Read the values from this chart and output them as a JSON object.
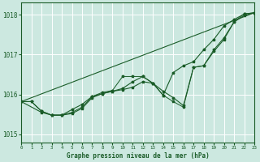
{
  "title": "Graphe pression niveau de la mer (hPa)",
  "bg_color": "#cce8e0",
  "grid_color": "#ffffff",
  "line_color": "#1a5c28",
  "x_min": 0,
  "x_max": 23,
  "y_min": 1014.8,
  "y_max": 1018.3,
  "yticks": [
    1015,
    1016,
    1017,
    1018
  ],
  "xticks": [
    0,
    1,
    2,
    3,
    4,
    5,
    6,
    7,
    8,
    9,
    10,
    11,
    12,
    13,
    14,
    15,
    16,
    17,
    18,
    19,
    20,
    21,
    22,
    23
  ],
  "series": [
    {
      "x": [
        0,
        1,
        2,
        3,
        4,
        5,
        6,
        7,
        8,
        9,
        10,
        11,
        12,
        13,
        14,
        15,
        16,
        17,
        18,
        19,
        20,
        21,
        22,
        23
      ],
      "y": [
        1015.82,
        1015.82,
        1015.58,
        1015.48,
        1015.48,
        1015.52,
        1015.65,
        1015.92,
        1016.02,
        1016.08,
        1016.12,
        1016.18,
        1016.32,
        1016.28,
        1016.08,
        1015.92,
        1015.72,
        1016.68,
        1016.72,
        1017.08,
        1017.38,
        1017.82,
        1017.98,
        1018.05
      ]
    },
    {
      "x": [
        0,
        1,
        2,
        3,
        4,
        5,
        6,
        7,
        8,
        9,
        10,
        11,
        12,
        13,
        14,
        15,
        16,
        17,
        18,
        19,
        20,
        21,
        22,
        23
      ],
      "y": [
        1015.82,
        1015.82,
        1015.58,
        1015.48,
        1015.48,
        1015.55,
        1015.68,
        1015.95,
        1016.05,
        1016.1,
        1016.45,
        1016.45,
        1016.45,
        1016.28,
        1015.98,
        1015.82,
        1015.68,
        1016.68,
        1016.72,
        1017.12,
        1017.42,
        1017.82,
        1018.02,
        1018.05
      ]
    },
    {
      "x": [
        0,
        2,
        3,
        4,
        5,
        6,
        7,
        8,
        9,
        10,
        11,
        12,
        13,
        14,
        15,
        16,
        17,
        18,
        19,
        20,
        21,
        22,
        23
      ],
      "y": [
        1015.82,
        1015.55,
        1015.48,
        1015.48,
        1015.62,
        1015.75,
        1015.95,
        1016.02,
        1016.08,
        1016.15,
        1016.32,
        1016.45,
        1016.28,
        1015.98,
        1016.55,
        1016.72,
        1016.82,
        1017.12,
        1017.38,
        1017.72,
        1017.88,
        1018.02,
        1018.05
      ]
    },
    {
      "x": [
        0,
        23
      ],
      "y": [
        1015.82,
        1018.05
      ]
    }
  ]
}
